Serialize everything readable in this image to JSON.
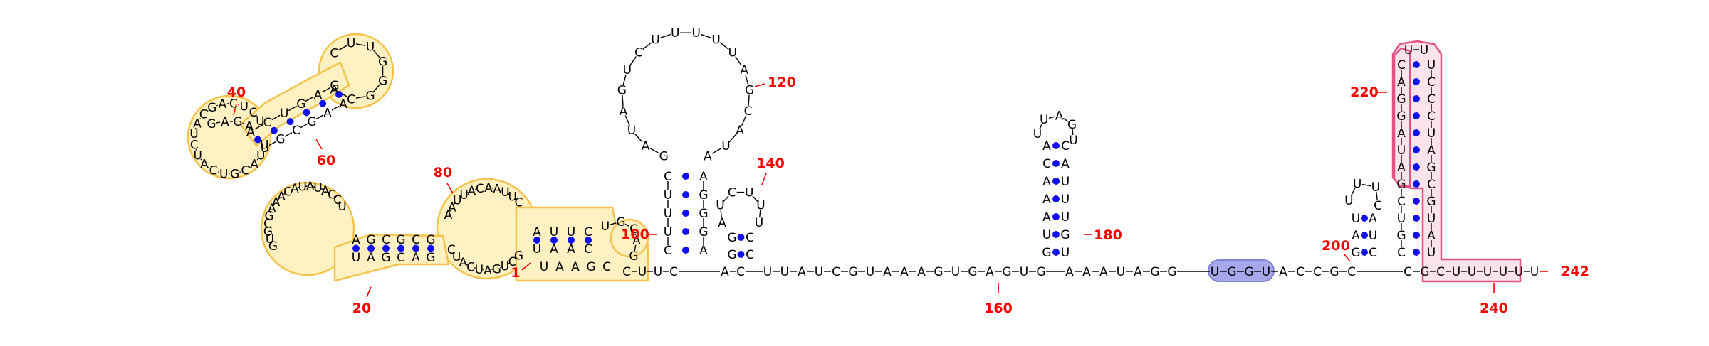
{
  "colors": {
    "background": "#ffffff",
    "nucleotide_text": "#000000",
    "backbone": "#000000",
    "base_pair_dot": "#1010ee",
    "position_label": "#ff0000",
    "highlight_yellow_fill": "#fff1c2",
    "highlight_yellow_stroke": "#f5c34a",
    "highlight_blue_fill": "#a7a7ec",
    "highlight_blue_stroke": "#8181d6",
    "highlight_pink_fill": "#fbe3ec",
    "highlight_pink_stroke": "#e45185"
  },
  "position_labels": [
    "1",
    "20",
    "40",
    "60",
    "80",
    "100",
    "120",
    "140",
    "160",
    "180",
    "200",
    "220",
    "240",
    "242"
  ],
  "regions": {
    "domain_a": {
      "strand_5": [
        "U",
        "A",
        "A",
        "G",
        "C",
        "U",
        "U",
        "A",
        "C",
        "G",
        "U",
        "C",
        "A",
        "U",
        "C",
        "U",
        "A",
        "C",
        "G",
        "A",
        "C",
        "U",
        "C",
        "U"
      ],
      "loop_40": [
        "G",
        "A",
        "G",
        "A"
      ],
      "stem_40_5": [
        "A",
        "C",
        "U",
        "G",
        "A",
        "G"
      ],
      "apex_loop": [
        "C",
        "U",
        "U",
        "G",
        "G"
      ],
      "stem_40_3": [
        "U",
        "G",
        "C",
        "G",
        "A",
        "A",
        "U",
        "C",
        "A",
        "G"
      ],
      "inner_3": [
        "U",
        "C",
        "C",
        "A",
        "U",
        "A",
        "U",
        "A",
        "C",
        "A",
        "A",
        "A",
        "G",
        "C",
        "G",
        "U",
        "G"
      ],
      "loop_80": [
        "A",
        "A",
        "U",
        "U",
        "A",
        "C",
        "A",
        "A",
        "U",
        "U",
        "C"
      ],
      "hairpin_tip": [
        "U",
        "G",
        "C",
        "A",
        "G"
      ],
      "return_3": [
        "C",
        "U",
        "A",
        "C",
        "U",
        "A",
        "G",
        "U",
        "C",
        "G",
        "A",
        "G",
        "C"
      ]
    },
    "hairpin_120": {
      "stem_5": [
        "C",
        "U",
        "U",
        "U",
        "C"
      ],
      "loop": [
        "G",
        "A",
        "U",
        "A",
        "G",
        "U",
        "C",
        "U",
        "U",
        "U",
        "U",
        "U",
        "A",
        "G",
        "C",
        "A",
        "U",
        "A"
      ],
      "stem_3": [
        "A",
        "G",
        "G",
        "G",
        "A"
      ]
    },
    "hairpin_140": {
      "stem_5": [
        "G",
        "G"
      ],
      "loop": [
        "A",
        "U",
        "C",
        "U",
        "U",
        "U"
      ],
      "stem_3": [
        "C",
        "C"
      ]
    },
    "linker_160": [
      "U",
      "U",
      "A",
      "U",
      "C",
      "G",
      "U",
      "A",
      "A",
      "A",
      "G",
      "U",
      "G",
      "A",
      "G",
      "U",
      "G"
    ],
    "hairpin_180": {
      "stem_5": [
        "G",
        "U",
        "A",
        "A",
        "A",
        "C",
        "A"
      ],
      "loop": [
        "U",
        "U",
        "A",
        "G",
        "U"
      ],
      "stem_3": [
        "U",
        "G",
        "U",
        "U",
        "U",
        "A",
        "C"
      ]
    },
    "linker_200": [
      "A",
      "A",
      "A",
      "U",
      "A",
      "G",
      "G"
    ],
    "highlight_blue_seq": [
      "U",
      "G",
      "G",
      "U"
    ],
    "linker_200b": [
      "A",
      "C",
      "C",
      "G",
      "C"
    ],
    "hairpin_200": {
      "stem_5": [
        "G",
        "A",
        "U"
      ],
      "loop": [
        "U",
        "U",
        "U",
        "C"
      ],
      "stem_3": [
        "C",
        "U",
        "A"
      ]
    },
    "linker_210": [
      "C",
      "G"
    ],
    "hairpin_220": {
      "stem_5": [
        "C",
        "G",
        "U",
        "C",
        "G",
        "A",
        "U",
        "A",
        "G",
        "G",
        "A",
        "C"
      ],
      "apex": [
        "U",
        "U"
      ],
      "stem_3": [
        "U",
        "A",
        "U",
        "G",
        "C",
        "G",
        "A",
        "U",
        "C",
        "C",
        "C",
        "U"
      ]
    },
    "tail_3": [
      "C",
      "U",
      "U",
      "U",
      "U",
      "U",
      "U"
    ]
  }
}
